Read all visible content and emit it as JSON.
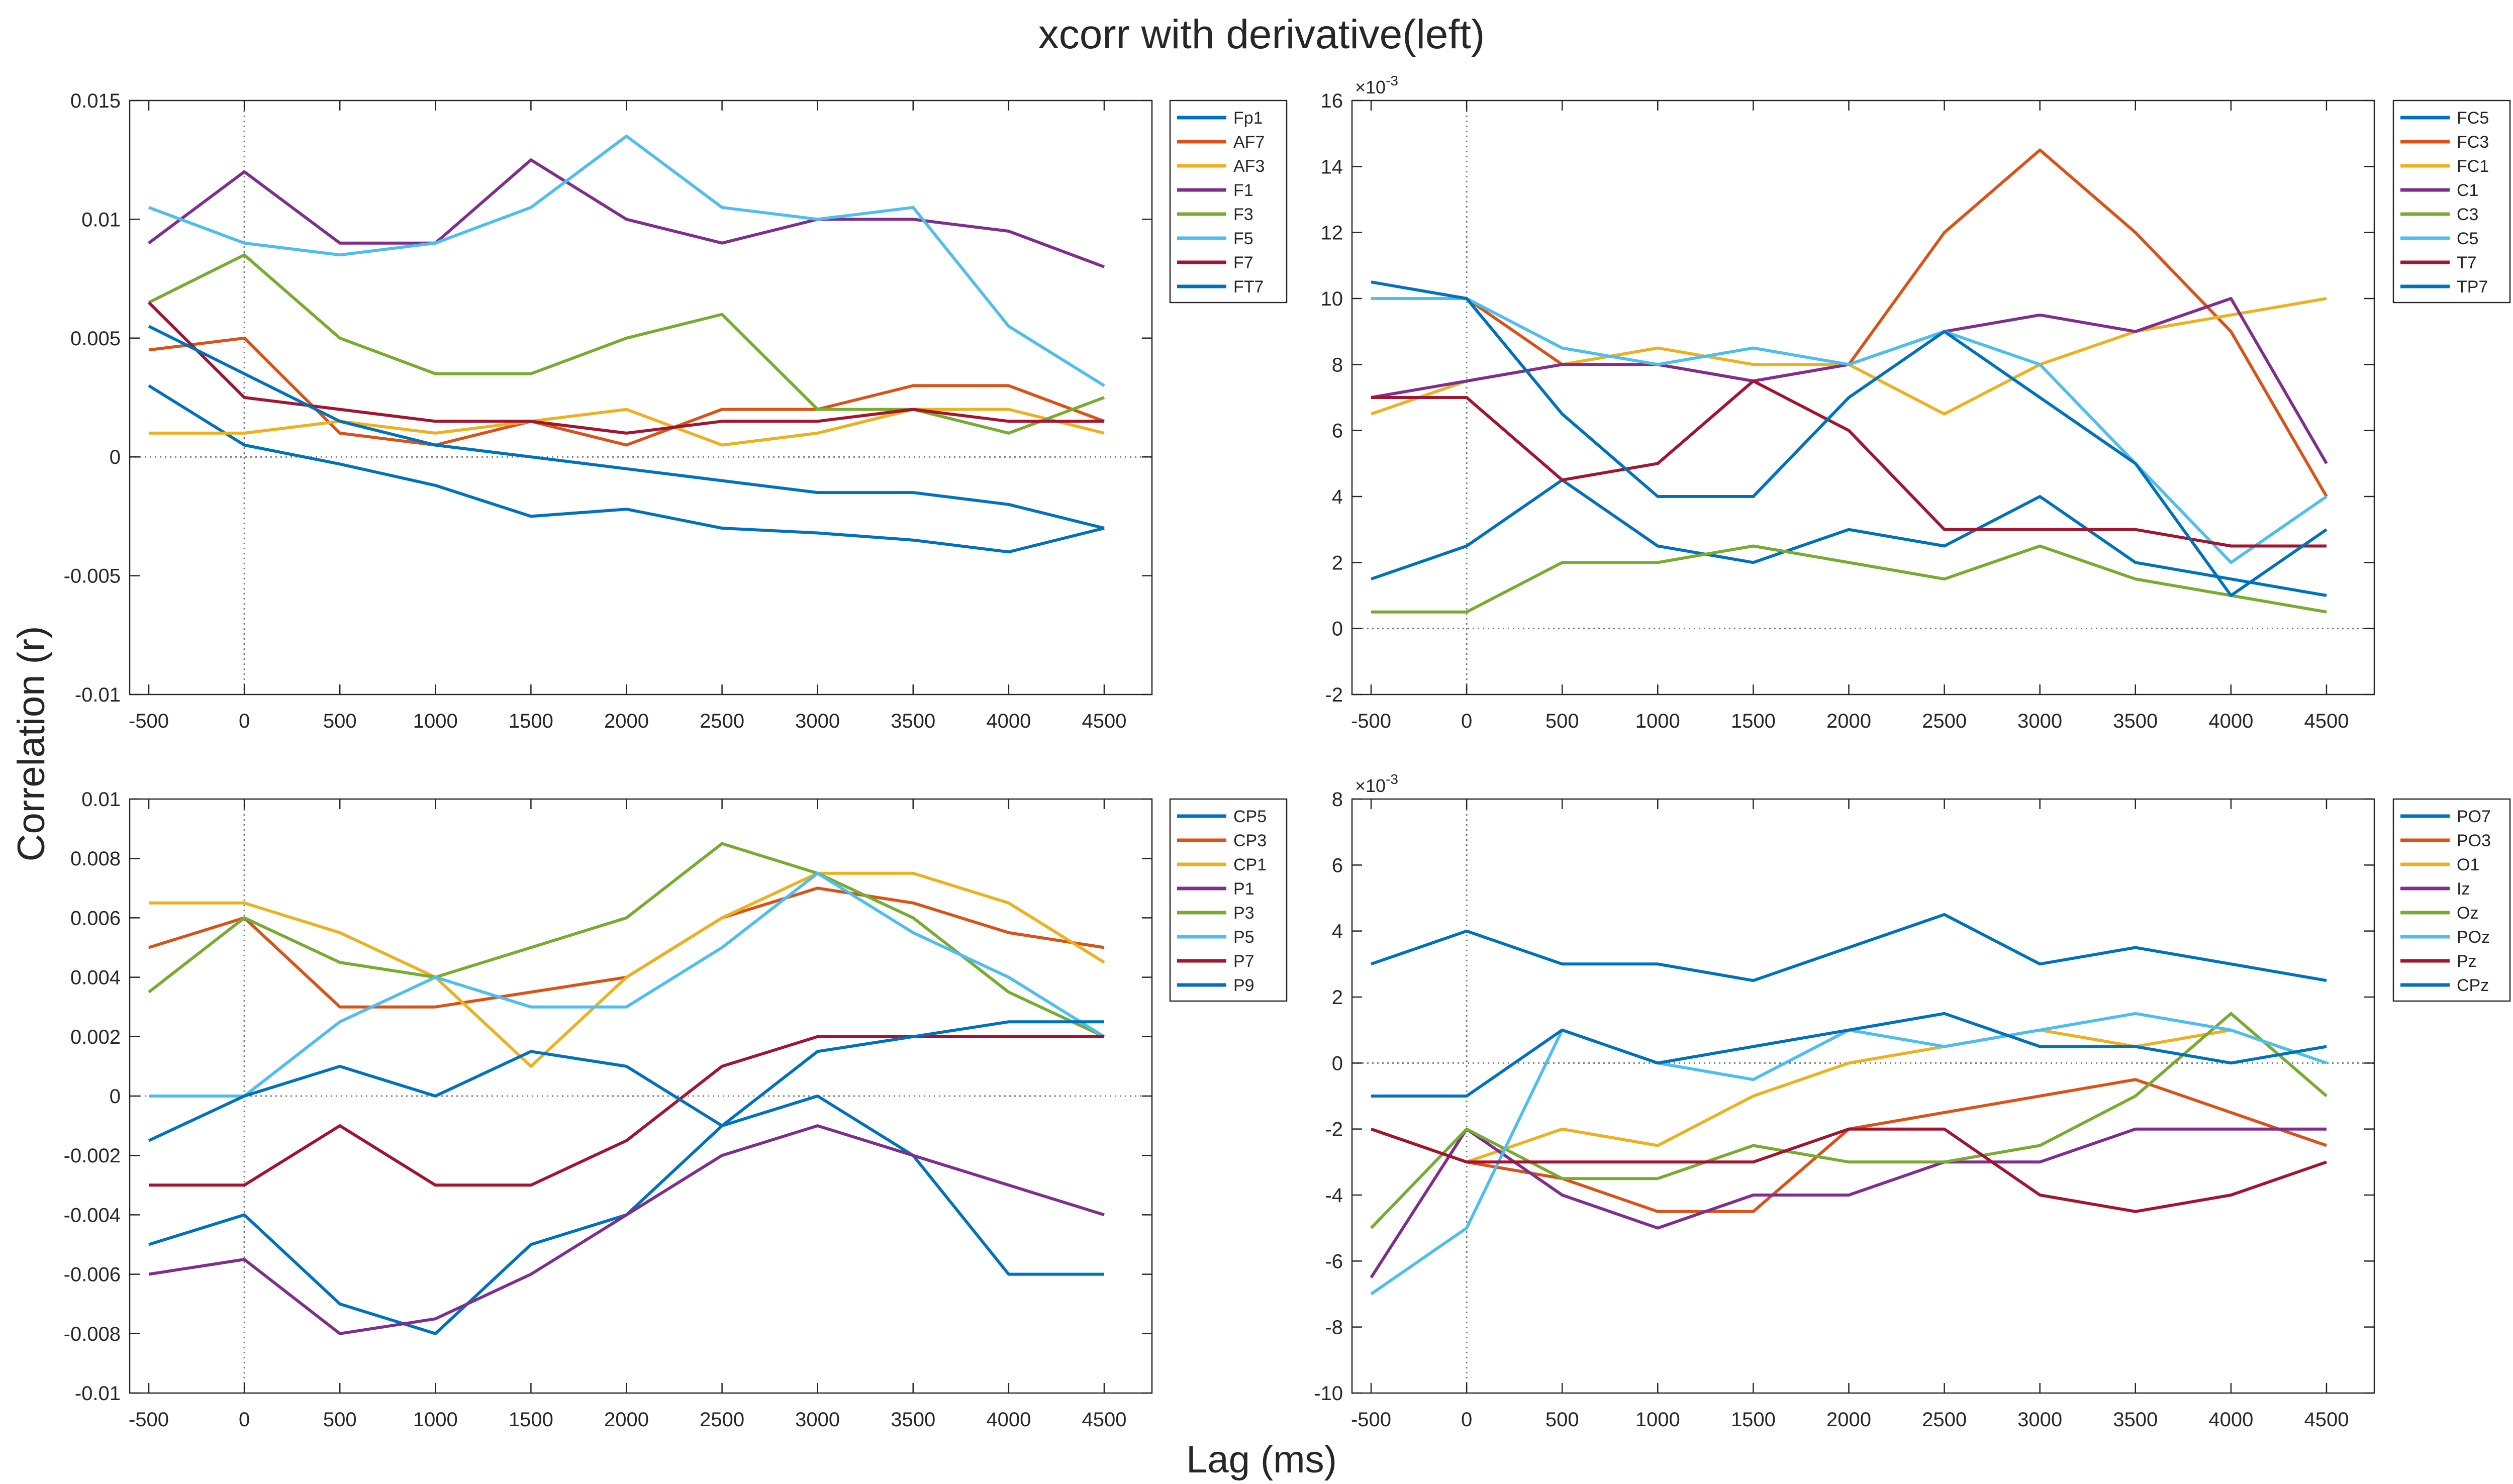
{
  "figure": {
    "title": "xcorr with derivative(left)",
    "xlabel": "Lag (ms)",
    "ylabel": "Correlation (r)"
  },
  "chart_data": [
    {
      "type": "line",
      "panel": "top-left",
      "xlim": [
        -600,
        4750
      ],
      "ylim": [
        -0.01,
        0.015
      ],
      "xticks": [
        -500,
        0,
        500,
        1000,
        1500,
        2000,
        2500,
        3000,
        3500,
        4000,
        4500
      ],
      "yticks": [
        -0.01,
        -0.005,
        0,
        0.005,
        0.01,
        0.015
      ],
      "ytick_labels": [
        "-0.01",
        "-0.005",
        "0",
        "0.005",
        "0.01",
        "0.015"
      ],
      "exponent_label": "",
      "legend_position": "outside-right",
      "x": [
        -500,
        0,
        500,
        1000,
        1500,
        2000,
        2500,
        3000,
        3500,
        4000,
        4500
      ],
      "series": [
        {
          "name": "Fp1",
          "color": "#0072BD",
          "values": [
            0.003,
            0.0005,
            -0.0003,
            -0.0012,
            -0.0025,
            -0.0022,
            -0.003,
            -0.0032,
            -0.0035,
            -0.004,
            -0.003
          ]
        },
        {
          "name": "AF7",
          "color": "#D95319",
          "values": [
            0.0045,
            0.005,
            0.001,
            0.0005,
            0.0015,
            0.0005,
            0.002,
            0.002,
            0.003,
            0.003,
            0.0015
          ]
        },
        {
          "name": "AF3",
          "color": "#EDB120",
          "values": [
            0.001,
            0.001,
            0.0015,
            0.001,
            0.0015,
            0.002,
            0.0005,
            0.001,
            0.002,
            0.002,
            0.001
          ]
        },
        {
          "name": "F1",
          "color": "#7E2F8E",
          "values": [
            0.009,
            0.012,
            0.009,
            0.009,
            0.0125,
            0.01,
            0.009,
            0.01,
            0.01,
            0.0095,
            0.008
          ]
        },
        {
          "name": "F3",
          "color": "#77AC30",
          "values": [
            0.0065,
            0.0085,
            0.005,
            0.0035,
            0.0035,
            0.005,
            0.006,
            0.002,
            0.002,
            0.001,
            0.0025
          ]
        },
        {
          "name": "F5",
          "color": "#4DBEEE",
          "values": [
            0.0105,
            0.009,
            0.0085,
            0.009,
            0.0105,
            0.0135,
            0.0105,
            0.01,
            0.0105,
            0.0055,
            0.003
          ]
        },
        {
          "name": "F7",
          "color": "#A2142F",
          "values": [
            0.0065,
            0.0025,
            0.002,
            0.0015,
            0.0015,
            0.001,
            0.0015,
            0.0015,
            0.002,
            0.0015,
            0.0015
          ]
        },
        {
          "name": "FT7",
          "color": "#0072BD",
          "values": [
            0.0055,
            0.0035,
            0.0015,
            0.0005,
            0.0,
            -0.0005,
            -0.001,
            -0.0015,
            -0.0015,
            -0.002,
            -0.003
          ]
        }
      ]
    },
    {
      "type": "line",
      "panel": "top-right",
      "xlim": [
        -600,
        4750
      ],
      "ylim": [
        -2,
        16
      ],
      "xticks": [
        -500,
        0,
        500,
        1000,
        1500,
        2000,
        2500,
        3000,
        3500,
        4000,
        4500
      ],
      "yticks": [
        -2,
        0,
        2,
        4,
        6,
        8,
        10,
        12,
        14,
        16
      ],
      "ytick_labels": [
        "-2",
        "0",
        "2",
        "4",
        "6",
        "8",
        "10",
        "12",
        "14",
        "16"
      ],
      "exponent_label": "×10-3",
      "legend_position": "outside-right",
      "x": [
        -500,
        0,
        500,
        1000,
        1500,
        2000,
        2500,
        3000,
        3500,
        4000,
        4500
      ],
      "series": [
        {
          "name": "FC5",
          "color": "#0072BD",
          "values": [
            1.5,
            2.5,
            4.5,
            2.5,
            2.0,
            3.0,
            2.5,
            4.0,
            2.0,
            1.5,
            1.0
          ]
        },
        {
          "name": "FC3",
          "color": "#D95319",
          "values": [
            10.0,
            10.0,
            8.0,
            8.0,
            7.5,
            8.0,
            12.0,
            14.5,
            12.0,
            9.0,
            4.0
          ]
        },
        {
          "name": "FC1",
          "color": "#EDB120",
          "values": [
            6.5,
            7.5,
            8.0,
            8.5,
            8.0,
            8.0,
            6.5,
            8.0,
            9.0,
            9.5,
            10.0
          ]
        },
        {
          "name": "C1",
          "color": "#7E2F8E",
          "values": [
            7.0,
            7.5,
            8.0,
            8.0,
            7.5,
            8.0,
            9.0,
            9.5,
            9.0,
            10.0,
            5.0
          ]
        },
        {
          "name": "C3",
          "color": "#77AC30",
          "values": [
            0.5,
            0.5,
            2.0,
            2.0,
            2.5,
            2.0,
            1.5,
            2.5,
            1.5,
            1.0,
            0.5
          ]
        },
        {
          "name": "C5",
          "color": "#4DBEEE",
          "values": [
            10.0,
            10.0,
            8.5,
            8.0,
            8.5,
            8.0,
            9.0,
            8.0,
            5.0,
            2.0,
            4.0
          ]
        },
        {
          "name": "T7",
          "color": "#A2142F",
          "values": [
            7.0,
            7.0,
            4.5,
            5.0,
            7.5,
            6.0,
            3.0,
            3.0,
            3.0,
            2.5,
            2.5
          ]
        },
        {
          "name": "TP7",
          "color": "#0072BD",
          "values": [
            10.5,
            10.0,
            6.5,
            4.0,
            4.0,
            7.0,
            9.0,
            7.0,
            5.0,
            1.0,
            3.0
          ]
        }
      ]
    },
    {
      "type": "line",
      "panel": "bottom-left",
      "xlim": [
        -600,
        4750
      ],
      "ylim": [
        -0.01,
        0.01
      ],
      "xticks": [
        -500,
        0,
        500,
        1000,
        1500,
        2000,
        2500,
        3000,
        3500,
        4000,
        4500
      ],
      "yticks": [
        -0.01,
        -0.008,
        -0.006,
        -0.004,
        -0.002,
        0,
        0.002,
        0.004,
        0.006,
        0.008,
        0.01
      ],
      "ytick_labels": [
        "-0.01",
        "-0.008",
        "-0.006",
        "-0.004",
        "-0.002",
        "0",
        "0.002",
        "0.004",
        "0.006",
        "0.008",
        "0.01"
      ],
      "exponent_label": "",
      "legend_position": "outside-right",
      "x": [
        -500,
        0,
        500,
        1000,
        1500,
        2000,
        2500,
        3000,
        3500,
        4000,
        4500
      ],
      "series": [
        {
          "name": "CP5",
          "color": "#0072BD",
          "values": [
            -0.005,
            -0.004,
            -0.007,
            -0.008,
            -0.005,
            -0.004,
            -0.001,
            0.0,
            -0.002,
            -0.006,
            -0.006
          ]
        },
        {
          "name": "CP3",
          "color": "#D95319",
          "values": [
            0.005,
            0.006,
            0.003,
            0.003,
            0.0035,
            0.004,
            0.006,
            0.007,
            0.0065,
            0.0055,
            0.005
          ]
        },
        {
          "name": "CP1",
          "color": "#EDB120",
          "values": [
            0.0065,
            0.0065,
            0.0055,
            0.004,
            0.001,
            0.004,
            0.006,
            0.0075,
            0.0075,
            0.0065,
            0.0045
          ]
        },
        {
          "name": "P1",
          "color": "#7E2F8E",
          "values": [
            -0.006,
            -0.0055,
            -0.008,
            -0.0075,
            -0.006,
            -0.004,
            -0.002,
            -0.001,
            -0.002,
            -0.003,
            -0.004
          ]
        },
        {
          "name": "P3",
          "color": "#77AC30",
          "values": [
            0.0035,
            0.006,
            0.0045,
            0.004,
            0.005,
            0.006,
            0.0085,
            0.0075,
            0.006,
            0.0035,
            0.002
          ]
        },
        {
          "name": "P5",
          "color": "#4DBEEE",
          "values": [
            0.0,
            0.0,
            0.0025,
            0.004,
            0.003,
            0.003,
            0.005,
            0.0075,
            0.0055,
            0.004,
            0.002
          ]
        },
        {
          "name": "P7",
          "color": "#A2142F",
          "values": [
            -0.003,
            -0.003,
            -0.001,
            -0.003,
            -0.003,
            -0.0015,
            0.001,
            0.002,
            0.002,
            0.002,
            0.002
          ]
        },
        {
          "name": "P9",
          "color": "#0072BD",
          "values": [
            -0.0015,
            0.0,
            0.001,
            0.0,
            0.0015,
            0.001,
            -0.001,
            0.0015,
            0.002,
            0.0025,
            0.0025
          ]
        }
      ]
    },
    {
      "type": "line",
      "panel": "bottom-right",
      "xlim": [
        -600,
        4750
      ],
      "ylim": [
        -10,
        8
      ],
      "xticks": [
        -500,
        0,
        500,
        1000,
        1500,
        2000,
        2500,
        3000,
        3500,
        4000,
        4500
      ],
      "yticks": [
        -10,
        -8,
        -6,
        -4,
        -2,
        0,
        2,
        4,
        6,
        8
      ],
      "ytick_labels": [
        "-10",
        "-8",
        "-6",
        "-4",
        "-2",
        "0",
        "2",
        "4",
        "6",
        "8"
      ],
      "exponent_label": "×10-3",
      "legend_position": "outside-right",
      "x": [
        -500,
        0,
        500,
        1000,
        1500,
        2000,
        2500,
        3000,
        3500,
        4000,
        4500
      ],
      "series": [
        {
          "name": "PO7",
          "color": "#0072BD",
          "values": [
            3.0,
            4.0,
            3.0,
            3.0,
            2.5,
            3.5,
            4.5,
            3.0,
            3.5,
            3.0,
            2.5
          ]
        },
        {
          "name": "PO3",
          "color": "#D95319",
          "values": [
            -2.0,
            -3.0,
            -3.5,
            -4.5,
            -4.5,
            -2.0,
            -1.5,
            -1.0,
            -0.5,
            -1.5,
            -2.5
          ]
        },
        {
          "name": "O1",
          "color": "#EDB120",
          "values": [
            -2.0,
            -3.0,
            -2.0,
            -2.5,
            -1.0,
            0.0,
            0.5,
            1.0,
            0.5,
            1.0,
            0.0
          ]
        },
        {
          "name": "Iz",
          "color": "#7E2F8E",
          "values": [
            -6.5,
            -2.0,
            -4.0,
            -5.0,
            -4.0,
            -4.0,
            -3.0,
            -3.0,
            -2.0,
            -2.0,
            -2.0
          ]
        },
        {
          "name": "Oz",
          "color": "#77AC30",
          "values": [
            -5.0,
            -2.0,
            -3.5,
            -3.5,
            -2.5,
            -3.0,
            -3.0,
            -2.5,
            -1.0,
            1.5,
            -1.0
          ]
        },
        {
          "name": "POz",
          "color": "#4DBEEE",
          "values": [
            -7.0,
            -5.0,
            1.0,
            0.0,
            -0.5,
            1.0,
            0.5,
            1.0,
            1.5,
            1.0,
            0.0
          ]
        },
        {
          "name": "Pz",
          "color": "#A2142F",
          "values": [
            -2.0,
            -3.0,
            -3.0,
            -3.0,
            -3.0,
            -2.0,
            -2.0,
            -4.0,
            -4.5,
            -4.0,
            -3.0
          ]
        },
        {
          "name": "CPz",
          "color": "#0072BD",
          "values": [
            -1.0,
            -1.0,
            1.0,
            0.0,
            0.5,
            1.0,
            1.5,
            0.5,
            0.5,
            0.0,
            0.5
          ]
        }
      ]
    }
  ]
}
